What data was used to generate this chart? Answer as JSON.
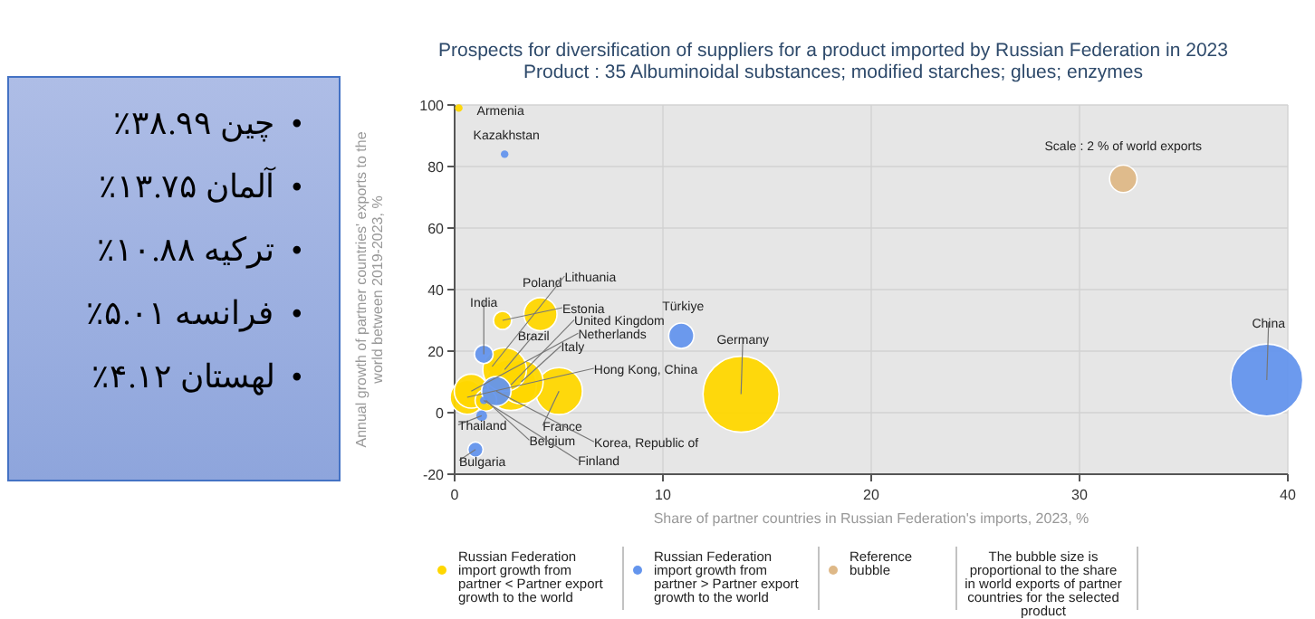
{
  "chart_data": [
    {
      "type": "other",
      "annotations": [
        "•  چین ۳۸.۹۹٪",
        "•  آلمان ۱۳.۷۵٪",
        "•  ترکیه ۱۰.۸۸٪",
        "•  فرانسه ۵.۰۱٪",
        "•  لهستان ۴.۱۲٪"
      ]
    },
    {
      "type": "bubble",
      "title": "Prospects for diversification of suppliers for a product imported by Russian Federation in 2023",
      "subtitle": "Product : 35 Albuminoidal substances; modified starches; glues; enzymes",
      "xlabel": "Share of partner countries in Russian Federation's imports, 2023, %",
      "ylabel": "Annual growth of partner countries' exports to the world between 2019-2023, %",
      "xlim": [
        0,
        40
      ],
      "xticks": [
        0,
        10,
        20,
        30,
        40
      ],
      "ylim": [
        -20,
        100
      ],
      "yticks": [
        -20,
        0,
        20,
        40,
        60,
        80,
        100
      ],
      "grid": true,
      "legend": "bottom",
      "series": [
        {
          "name": "Russian Federation import growth from partner < Partner export growth to the world",
          "color": "#ffd700",
          "x": [
            13.75,
            5.01,
            2.7,
            3.2,
            2.4,
            0.6,
            0.8,
            4.12,
            1.5,
            2.3,
            1.8,
            0.2
          ],
          "values": [
            6,
            7,
            9,
            10,
            14,
            5,
            7,
            32,
            4,
            30,
            15,
            99
          ],
          "sizes": [
            1,
            0.38,
            0.45,
            0.33,
            0.33,
            0.2,
            0.2,
            0.19,
            0.08,
            0.057,
            0.02,
            0.01
          ]
        },
        {
          "name": "Russian Federation import growth from partner > Partner export growth to the world",
          "color": "#6495ed",
          "x": [
            38.99,
            10.88,
            2.0,
            1.4,
            1.0,
            1.3,
            1.4,
            2.4
          ],
          "values": [
            10.6,
            25,
            7,
            19,
            -12,
            -1,
            4,
            84
          ],
          "sizes": [
            0.9,
            0.11,
            0.15,
            0.06,
            0.04,
            0.02,
            0.01,
            0.01
          ]
        },
        {
          "name": "Reference bubble",
          "color": "#deb887",
          "x": [
            32.1
          ],
          "values": [
            76
          ],
          "sizes": [
            0.13
          ]
        }
      ],
      "annotations": [
        {
          "text": "Germany",
          "x": 13.75,
          "y": 6
        },
        {
          "text": "France",
          "x": 5.01,
          "y": 7
        },
        {
          "text": "United Kingdom",
          "x": 2.7,
          "y": 9
        },
        {
          "text": "Italy",
          "x": 3.2,
          "y": 10
        },
        {
          "text": "Brazil",
          "x": 2.4,
          "y": 14
        },
        {
          "text": "Hong Kong, China",
          "x": 0.6,
          "y": 5
        },
        {
          "text": "Netherlands",
          "x": 0.8,
          "y": 7
        },
        {
          "text": "Poland",
          "x": 4.12,
          "y": 32
        },
        {
          "text": "Belgium",
          "x": 1.5,
          "y": 4
        },
        {
          "text": "Estonia",
          "x": 2.3,
          "y": 30
        },
        {
          "text": "Lithuania",
          "x": 1.8,
          "y": 15
        },
        {
          "text": "Armenia",
          "x": 0.2,
          "y": 99
        },
        {
          "text": "China",
          "x": 38.99,
          "y": 10.6
        },
        {
          "text": "Türkiye",
          "x": 10.88,
          "y": 25
        },
        {
          "text": "Korea, Republic of",
          "x": 2.0,
          "y": 7
        },
        {
          "text": "India",
          "x": 1.4,
          "y": 19
        },
        {
          "text": "Bulgaria",
          "x": 1.0,
          "y": -12
        },
        {
          "text": "Thailand",
          "x": 1.3,
          "y": -1
        },
        {
          "text": "Finland",
          "x": 1.4,
          "y": 4
        },
        {
          "text": "Kazakhstan",
          "x": 2.4,
          "y": 84
        },
        {
          "text": "Scale : 2 % of world exports",
          "x": 32.1,
          "y": 76
        },
        "The bubble size is proportional to the share in world exports of partner countries for the selected product"
      ]
    }
  ]
}
